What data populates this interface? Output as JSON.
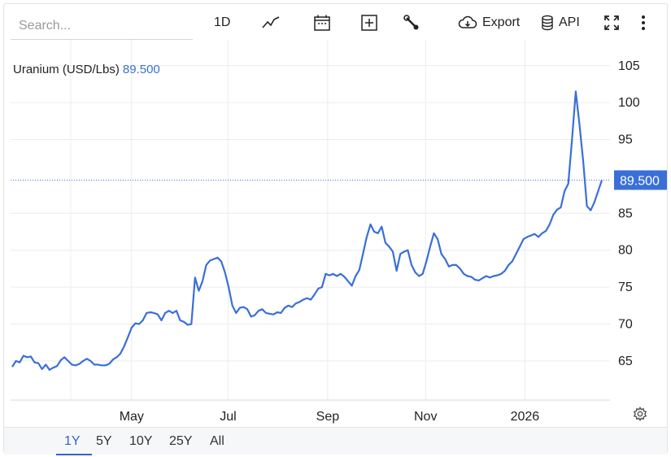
{
  "toolbar": {
    "search_placeholder": "Search...",
    "interval_label": "1D",
    "export_label": "Export",
    "api_label": "API",
    "icons": [
      "line-chart-icon",
      "calendar-icon",
      "plus-box-icon",
      "wrench-icon",
      "cloud-download-icon",
      "database-icon",
      "fullscreen-icon",
      "more-vertical-icon"
    ]
  },
  "colors": {
    "line": "#3a6fd8",
    "badge": "#3a6fd8",
    "grid": "#ececec",
    "active_range": "#2f63d1"
  },
  "ranges": {
    "items": [
      "1Y",
      "5Y",
      "10Y",
      "25Y",
      "All"
    ],
    "active": "1Y"
  },
  "chart_data": {
    "type": "line",
    "title": "Uranium (USD/Lbs)",
    "last_value": "89.500",
    "y_ticks": [
      65,
      70,
      75,
      80,
      85,
      95,
      100,
      105
    ],
    "x_ticks": [
      "May",
      "Jul",
      "Sep",
      "Nov",
      "2026"
    ],
    "ylim": [
      59.7,
      108.5
    ],
    "grid": true,
    "series": [
      {
        "points": [
          [
            0,
            64.2
          ],
          [
            1,
            65.0
          ],
          [
            2,
            64.8
          ],
          [
            3,
            65.7
          ],
          [
            4,
            65.5
          ],
          [
            5,
            65.6
          ],
          [
            6,
            64.8
          ],
          [
            7,
            64.7
          ],
          [
            8,
            63.9
          ],
          [
            9,
            64.5
          ],
          [
            10,
            63.8
          ],
          [
            11,
            64.1
          ],
          [
            12,
            64.3
          ],
          [
            13,
            65.1
          ],
          [
            14,
            65.5
          ],
          [
            15,
            65.0
          ],
          [
            16,
            64.5
          ],
          [
            17,
            64.4
          ],
          [
            18,
            64.6
          ],
          [
            19,
            65.0
          ],
          [
            20,
            65.3
          ],
          [
            21,
            65.0
          ],
          [
            22,
            64.5
          ],
          [
            23,
            64.5
          ],
          [
            24,
            64.4
          ],
          [
            25,
            64.4
          ],
          [
            26,
            64.6
          ],
          [
            27,
            65.2
          ],
          [
            28,
            65.5
          ],
          [
            29,
            66.0
          ],
          [
            30,
            67.0
          ],
          [
            31,
            68.2
          ],
          [
            32,
            69.5
          ],
          [
            33,
            70.1
          ],
          [
            34,
            70.0
          ],
          [
            35,
            70.5
          ],
          [
            36,
            71.5
          ],
          [
            37,
            71.6
          ],
          [
            38,
            71.5
          ],
          [
            39,
            71.3
          ],
          [
            40,
            70.5
          ],
          [
            41,
            71.5
          ],
          [
            42,
            71.8
          ],
          [
            43,
            71.5
          ],
          [
            44,
            71.8
          ],
          [
            45,
            70.5
          ],
          [
            46,
            70.3
          ],
          [
            47,
            69.9
          ],
          [
            48,
            70.0
          ],
          [
            49,
            76.3
          ],
          [
            50,
            74.5
          ],
          [
            51,
            75.8
          ],
          [
            52,
            78.0
          ],
          [
            53,
            78.6
          ],
          [
            54,
            78.8
          ],
          [
            55,
            79.0
          ],
          [
            56,
            78.5
          ],
          [
            57,
            77.0
          ],
          [
            58,
            75.0
          ],
          [
            59,
            72.5
          ],
          [
            60,
            71.5
          ],
          [
            61,
            72.2
          ],
          [
            62,
            72.3
          ],
          [
            63,
            72.0
          ],
          [
            64,
            71.0
          ],
          [
            65,
            71.2
          ],
          [
            66,
            71.8
          ],
          [
            67,
            72.0
          ],
          [
            68,
            71.5
          ],
          [
            69,
            71.4
          ],
          [
            70,
            71.3
          ],
          [
            71,
            71.6
          ],
          [
            72,
            71.5
          ],
          [
            73,
            72.2
          ],
          [
            74,
            72.5
          ],
          [
            75,
            72.3
          ],
          [
            76,
            72.8
          ],
          [
            77,
            73.0
          ],
          [
            78,
            73.3
          ],
          [
            79,
            73.5
          ],
          [
            80,
            73.3
          ],
          [
            81,
            74.0
          ],
          [
            82,
            74.8
          ],
          [
            83,
            75.0
          ],
          [
            84,
            76.8
          ],
          [
            85,
            76.6
          ],
          [
            86,
            76.8
          ],
          [
            87,
            76.5
          ],
          [
            88,
            76.8
          ],
          [
            89,
            76.4
          ],
          [
            90,
            75.8
          ],
          [
            91,
            75.2
          ],
          [
            92,
            76.5
          ],
          [
            93,
            77.3
          ],
          [
            94,
            79.5
          ],
          [
            95,
            81.8
          ],
          [
            96,
            83.5
          ],
          [
            97,
            82.5
          ],
          [
            98,
            82.3
          ],
          [
            99,
            83.2
          ],
          [
            100,
            81.0
          ],
          [
            101,
            80.5
          ],
          [
            102,
            79.8
          ],
          [
            103,
            77.2
          ],
          [
            104,
            79.5
          ],
          [
            105,
            79.8
          ],
          [
            106,
            80.0
          ],
          [
            107,
            78.0
          ],
          [
            108,
            77.0
          ],
          [
            109,
            76.5
          ],
          [
            110,
            76.8
          ],
          [
            111,
            78.5
          ],
          [
            112,
            80.5
          ],
          [
            113,
            82.3
          ],
          [
            114,
            81.5
          ],
          [
            115,
            79.5
          ],
          [
            116,
            78.8
          ],
          [
            117,
            77.8
          ],
          [
            118,
            78.0
          ],
          [
            119,
            78.0
          ],
          [
            120,
            77.5
          ],
          [
            121,
            76.8
          ],
          [
            122,
            76.5
          ],
          [
            123,
            76.4
          ],
          [
            124,
            76.0
          ],
          [
            125,
            75.9
          ],
          [
            126,
            76.2
          ],
          [
            127,
            76.5
          ],
          [
            128,
            76.3
          ],
          [
            129,
            76.5
          ],
          [
            130,
            76.6
          ],
          [
            131,
            76.8
          ],
          [
            132,
            77.2
          ],
          [
            133,
            78.0
          ],
          [
            134,
            78.5
          ],
          [
            135,
            79.5
          ],
          [
            136,
            80.5
          ],
          [
            137,
            81.5
          ],
          [
            138,
            81.8
          ],
          [
            139,
            82.0
          ],
          [
            140,
            82.2
          ],
          [
            141,
            81.8
          ],
          [
            142,
            82.3
          ],
          [
            143,
            82.6
          ],
          [
            144,
            83.5
          ],
          [
            145,
            84.8
          ],
          [
            146,
            85.5
          ],
          [
            147,
            85.8
          ],
          [
            148,
            88.0
          ],
          [
            149,
            89.0
          ],
          [
            150,
            95.0
          ],
          [
            151,
            101.5
          ],
          [
            152,
            97.0
          ],
          [
            153,
            92.0
          ],
          [
            154,
            86.0
          ],
          [
            155,
            85.4
          ],
          [
            156,
            86.5
          ],
          [
            157,
            88.0
          ],
          [
            158,
            89.5
          ]
        ]
      }
    ]
  }
}
